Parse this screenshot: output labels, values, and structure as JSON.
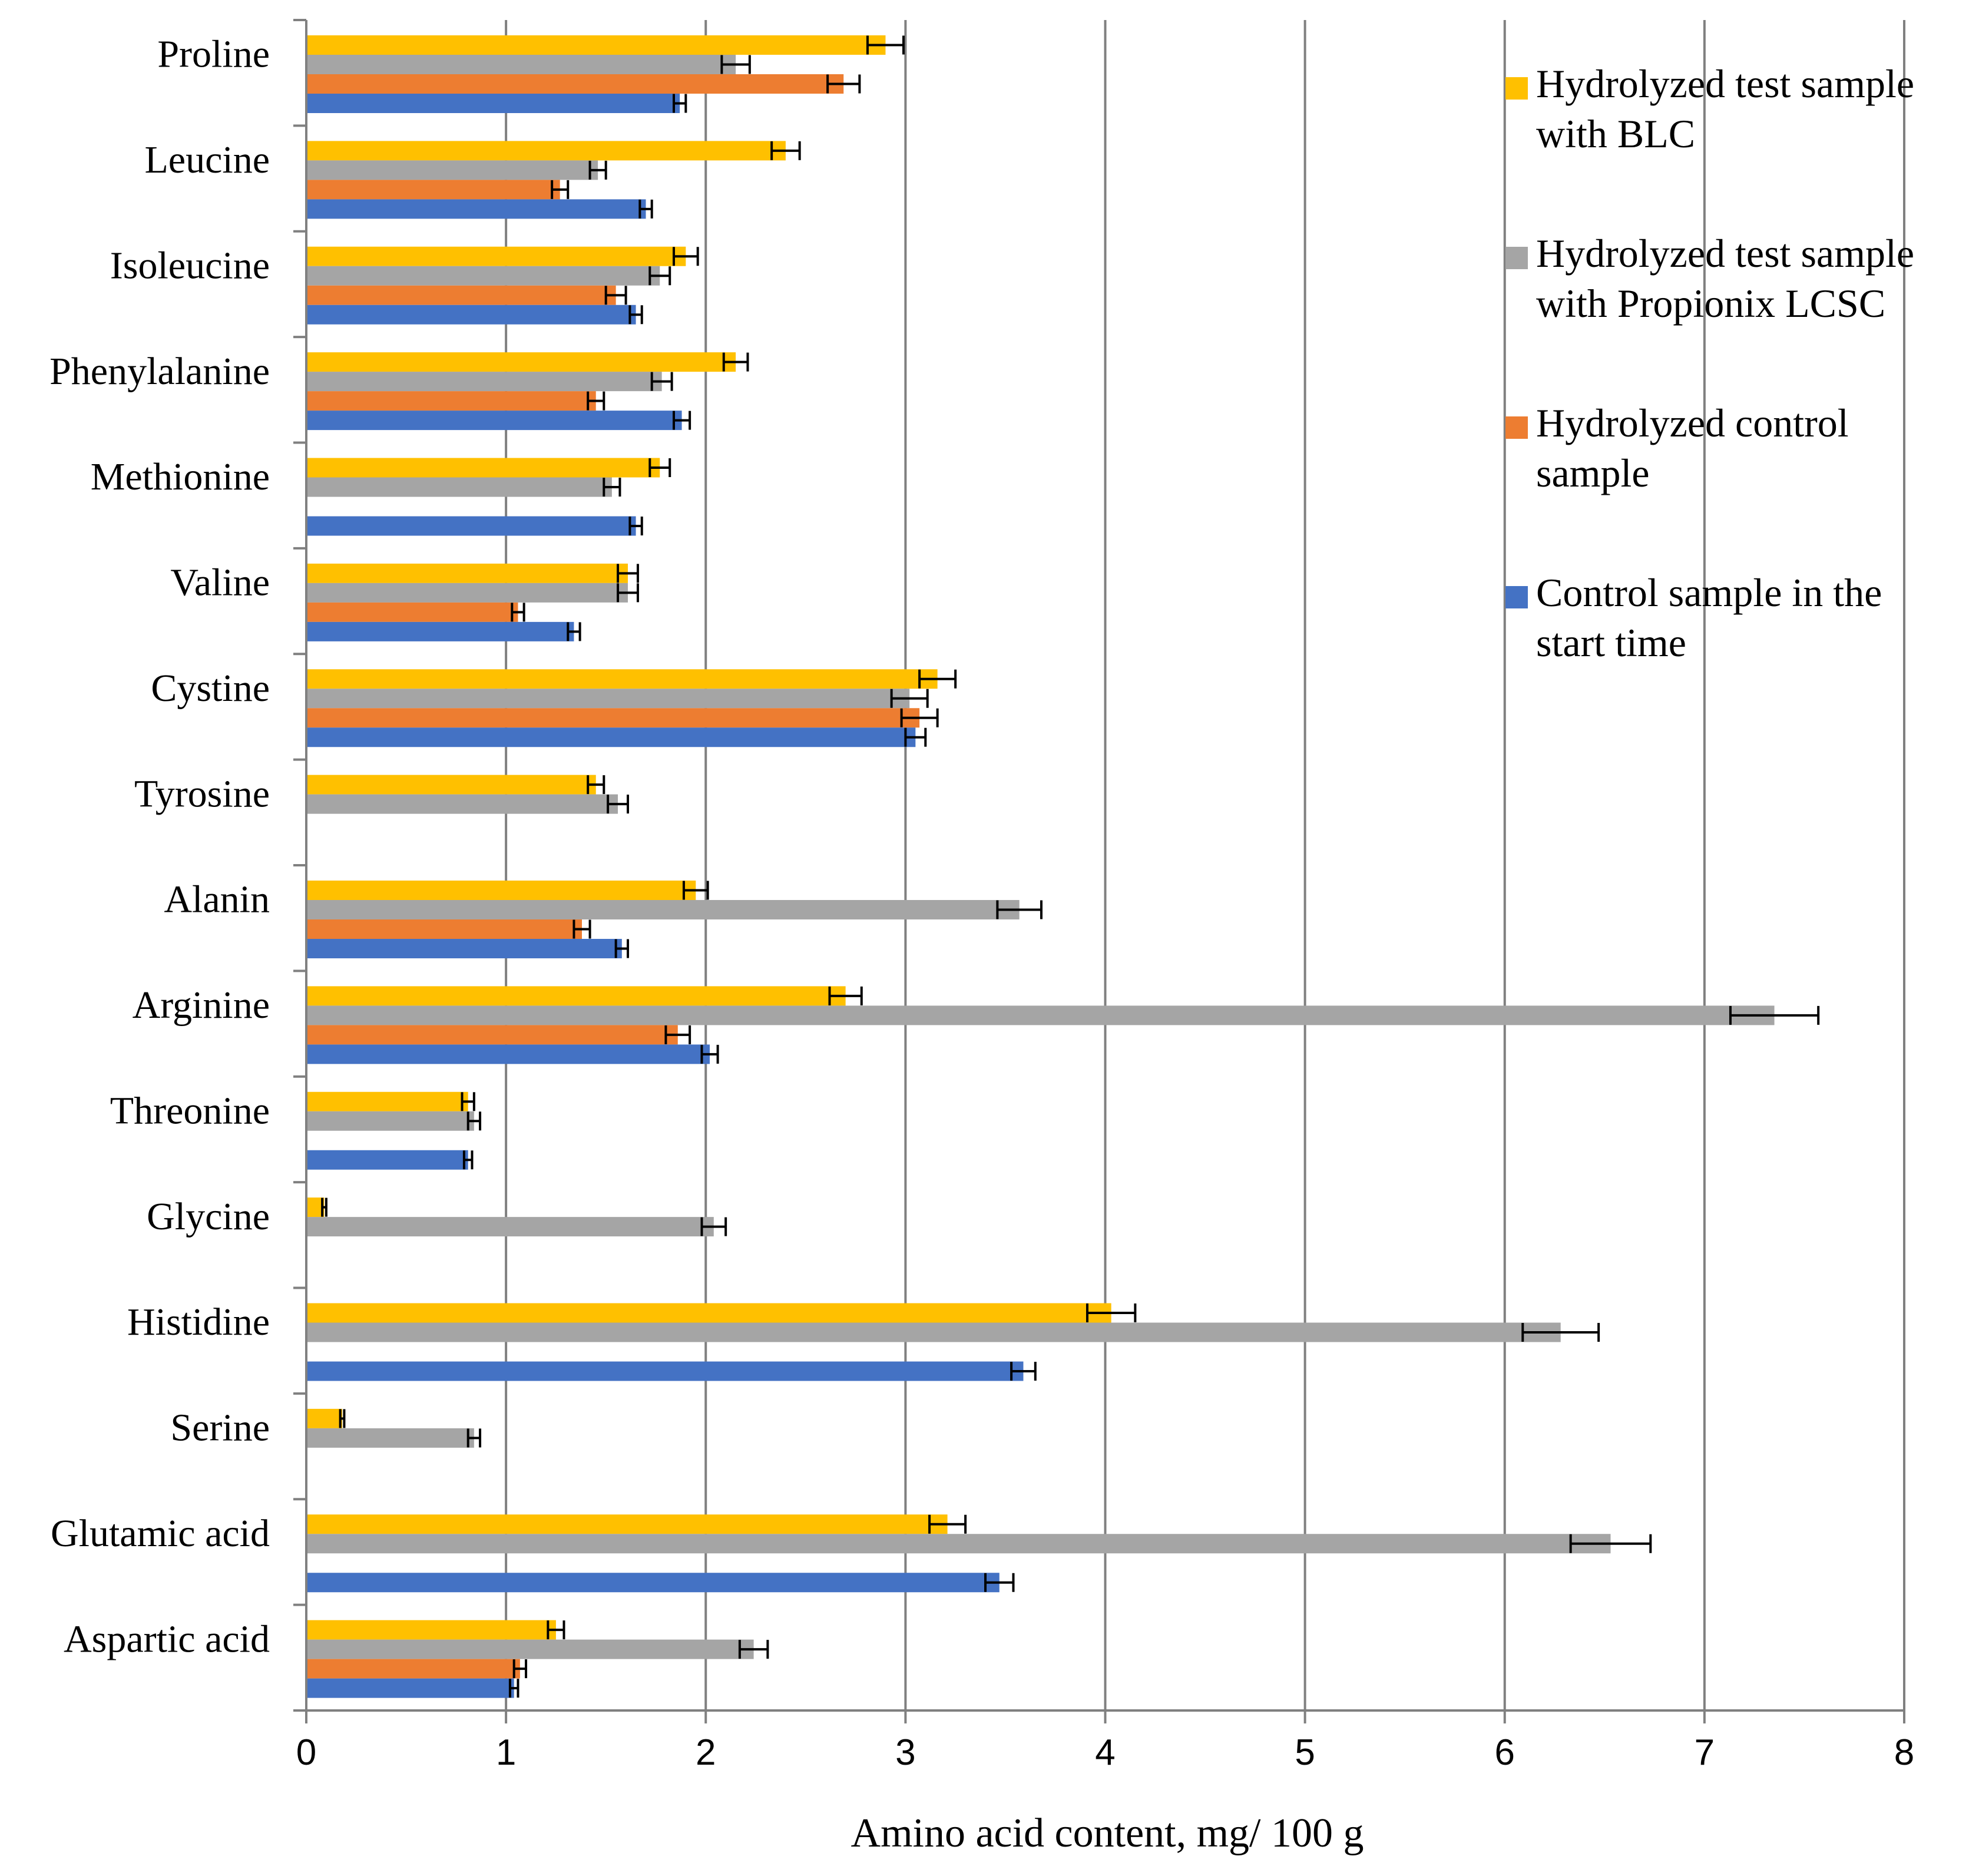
{
  "chart_data": {
    "type": "bar",
    "orientation": "horizontal",
    "xlabel": "Amino acid content, mg/ 100 g",
    "ylabel": "",
    "xlim": [
      0,
      8
    ],
    "x_ticks": [
      "0",
      "1",
      "2",
      "3",
      "4",
      "5",
      "6",
      "7",
      "8"
    ],
    "grid": "vertical",
    "legend_position": "right",
    "categories": [
      "Proline",
      "Leucine",
      "Isoleucine",
      "Phenylalanine",
      "Methionine",
      "Valine",
      "Cystine",
      "Tyrosine",
      "Alanin",
      "Arginine",
      "Threonine",
      "Glycine",
      "Histidine",
      "Serine",
      "Glutamic acid",
      "Aspartic acid"
    ],
    "series": [
      {
        "name": "Hydrolyzed test sample with BLC",
        "legend_lines": [
          "Hydrolyzed test sample",
          "with BLC"
        ],
        "color": "#FFC000",
        "values": [
          2.9,
          2.4,
          1.9,
          2.15,
          1.77,
          1.61,
          3.16,
          1.45,
          1.95,
          2.7,
          0.81,
          0.09,
          4.03,
          0.18,
          3.21,
          1.25
        ],
        "errors": [
          0.09,
          0.07,
          0.06,
          0.06,
          0.05,
          0.05,
          0.09,
          0.04,
          0.06,
          0.08,
          0.03,
          0.01,
          0.12,
          0.01,
          0.09,
          0.04
        ]
      },
      {
        "name": "Hydrolyzed test sample with Propionix LCSC",
        "legend_lines": [
          "Hydrolyzed test sample",
          "with Propionix LCSC"
        ],
        "color": "#A5A5A5",
        "values": [
          2.15,
          1.46,
          1.77,
          1.78,
          1.53,
          1.61,
          3.02,
          1.56,
          3.57,
          7.35,
          0.84,
          2.04,
          6.28,
          0.84,
          6.53,
          2.24
        ],
        "errors": [
          0.07,
          0.04,
          0.05,
          0.05,
          0.04,
          0.05,
          0.09,
          0.05,
          0.11,
          0.22,
          0.03,
          0.06,
          0.19,
          0.03,
          0.2,
          0.07
        ]
      },
      {
        "name": "Hydrolyzed control sample",
        "legend_lines": [
          "Hydrolyzed control",
          "sample"
        ],
        "color": "#ED7D31",
        "values": [
          2.69,
          1.27,
          1.55,
          1.45,
          null,
          1.06,
          3.07,
          null,
          1.38,
          1.86,
          null,
          null,
          null,
          null,
          null,
          1.07
        ],
        "errors": [
          0.08,
          0.04,
          0.05,
          0.04,
          null,
          0.03,
          0.09,
          null,
          0.04,
          0.06,
          null,
          null,
          null,
          null,
          null,
          0.03
        ]
      },
      {
        "name": "Control sample in the start time",
        "legend_lines": [
          "Control sample in the",
          "start time"
        ],
        "color": "#4472C4",
        "values": [
          1.87,
          1.7,
          1.65,
          1.88,
          1.65,
          1.34,
          3.05,
          null,
          1.58,
          2.02,
          0.81,
          null,
          3.59,
          null,
          3.47,
          1.04
        ],
        "errors": [
          0.03,
          0.03,
          0.03,
          0.04,
          0.03,
          0.03,
          0.05,
          null,
          0.03,
          0.04,
          0.02,
          null,
          0.06,
          null,
          0.07,
          0.02
        ]
      }
    ]
  }
}
